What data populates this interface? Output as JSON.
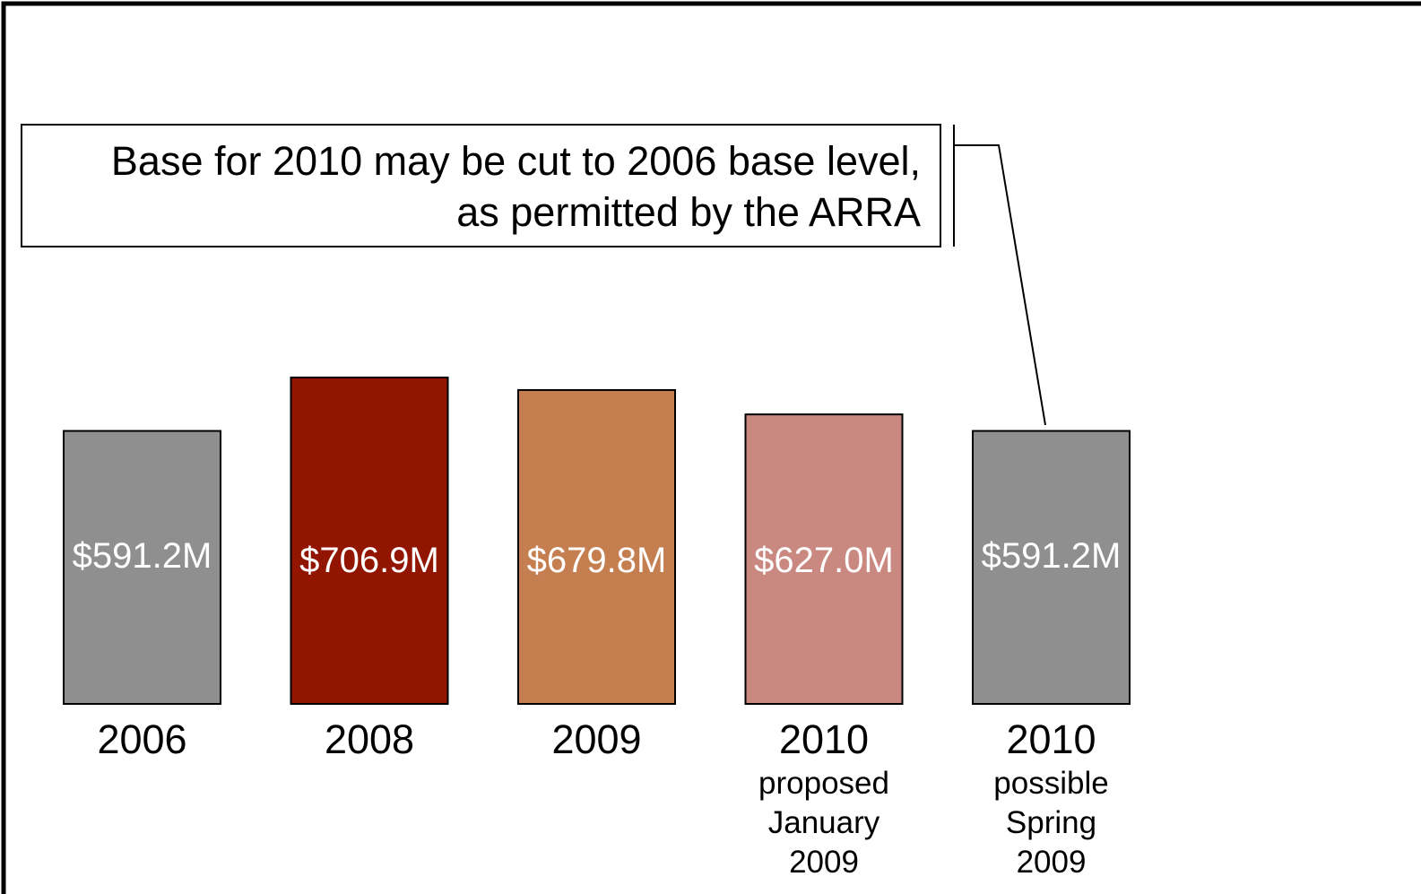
{
  "chart_data": {
    "type": "bar",
    "categories": [
      "2006",
      "2008",
      "2009",
      "2010",
      "2010"
    ],
    "category_sublabels": [
      [],
      [],
      [],
      [
        "proposed",
        "January",
        "2009"
      ],
      [
        "possible",
        "Spring",
        "2009"
      ]
    ],
    "values": [
      591.2,
      706.9,
      679.8,
      627.0,
      591.2
    ],
    "value_labels": [
      "$591.2M",
      "$706.9M",
      "$679.8M",
      "$627.0M",
      "$591.2M"
    ],
    "colors": [
      "#8f8f8f",
      "#921500",
      "#c47e4f",
      "#c98880",
      "#8f8f8f"
    ],
    "annotation": {
      "lines": [
        "Base for 2010 may be cut to 2006 base level,",
        "as permitted by the ARRA"
      ],
      "target_index": 4
    },
    "grid": false,
    "legend": "none"
  }
}
